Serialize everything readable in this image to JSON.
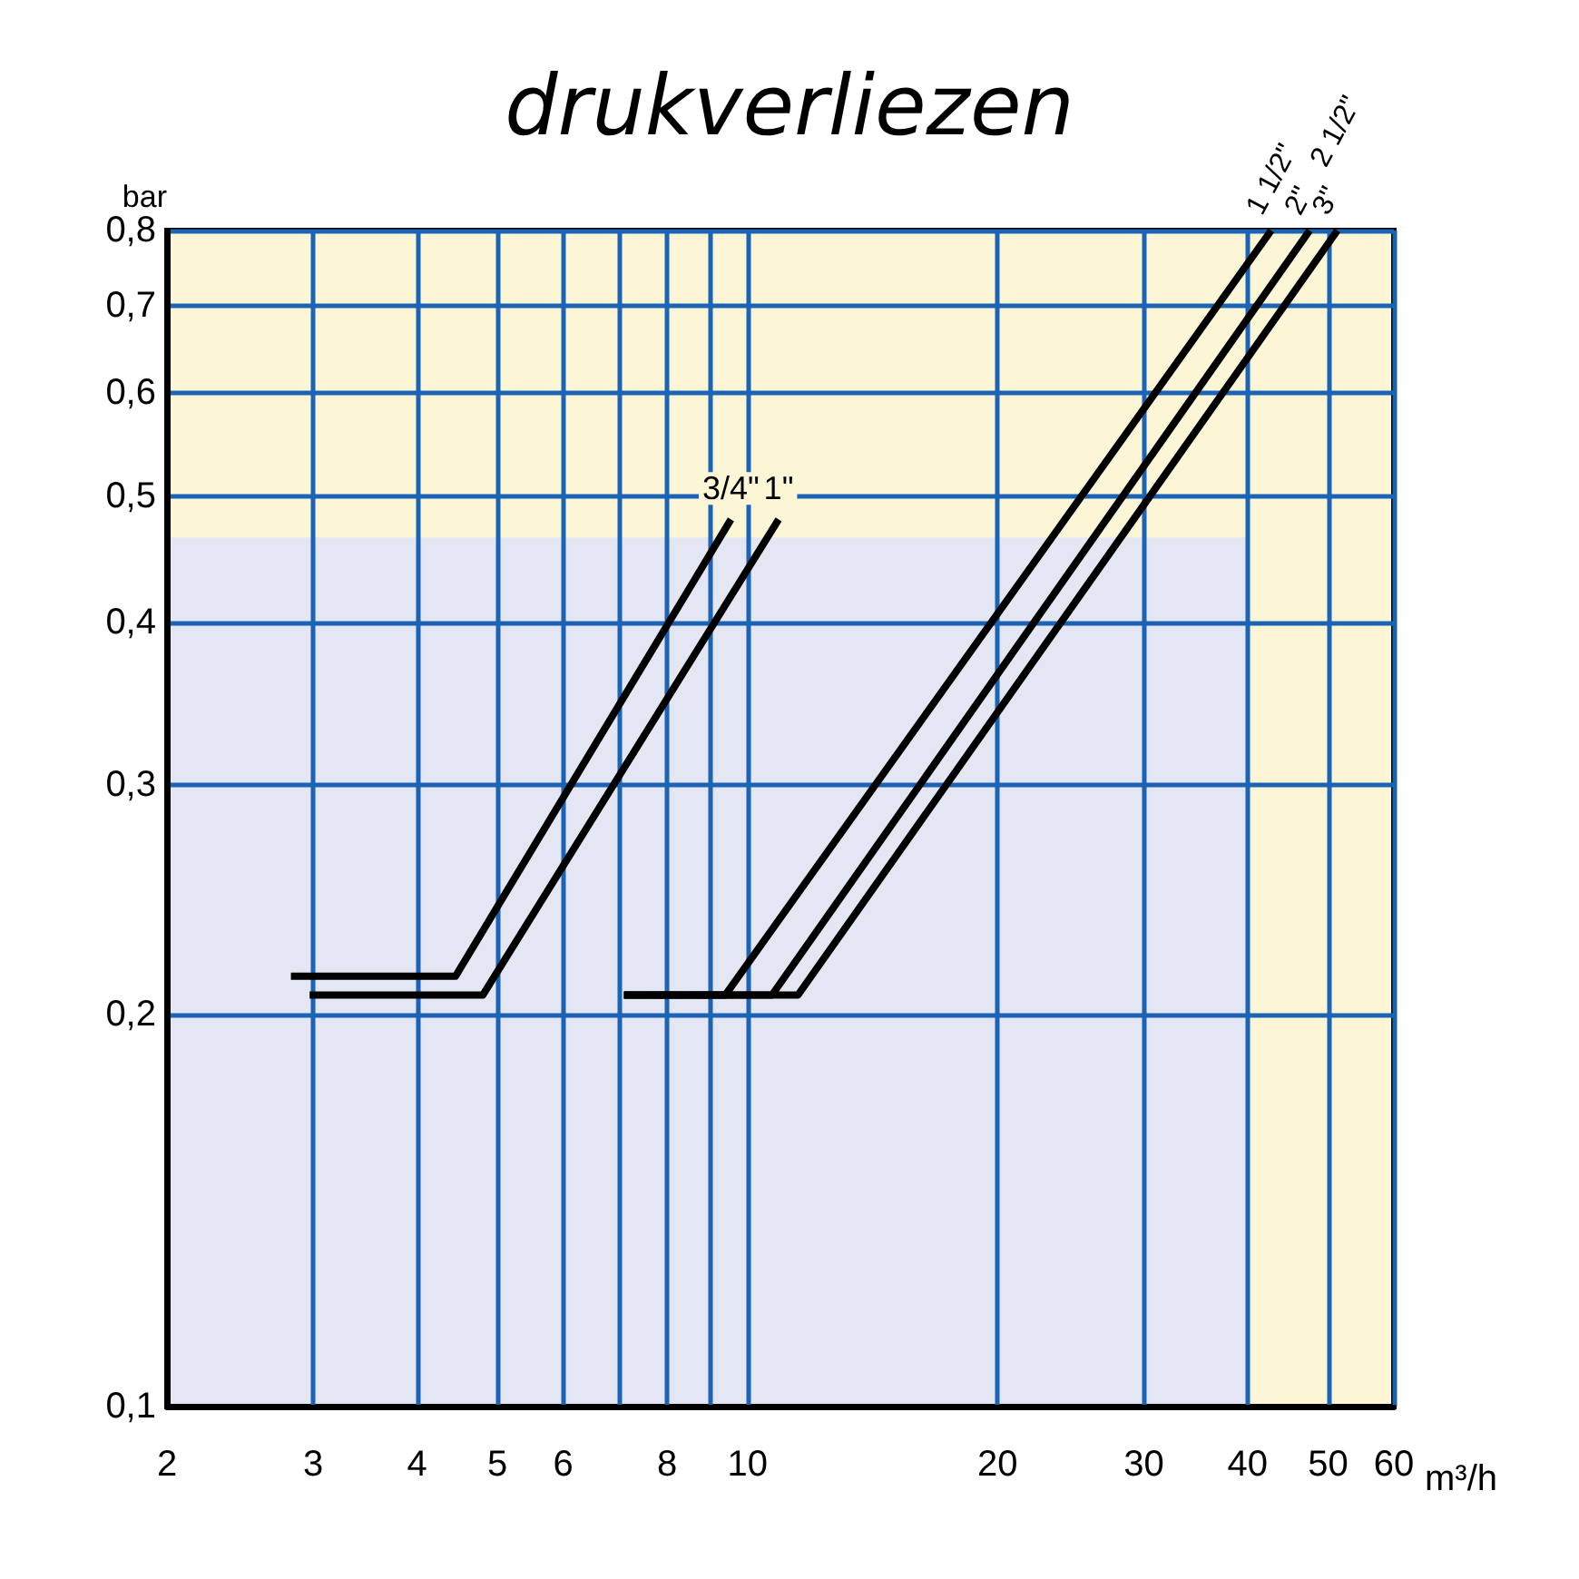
{
  "chart_data": {
    "type": "line",
    "title": "drukverliezen",
    "xlabel": "m³/h",
    "ylabel": "bar",
    "log": "xy",
    "grid": true,
    "legend": false,
    "marker": "none",
    "line_style": "solid",
    "xlim": [
      2,
      60
    ],
    "ylim": [
      0.1,
      0.8
    ],
    "xticks": [
      2,
      3,
      4,
      5,
      6,
      {
        "value": 7,
        "label": null
      },
      8,
      {
        "value": 9,
        "label": null
      },
      10,
      20,
      30,
      40,
      50,
      60
    ],
    "yticks": [
      {
        "value": 0.1,
        "label": "0,1"
      },
      {
        "value": 0.2,
        "label": "0,2"
      },
      {
        "value": 0.3,
        "label": "0,3"
      },
      {
        "value": 0.4,
        "label": "0,4"
      },
      {
        "value": 0.5,
        "label": "0,5"
      },
      {
        "value": 0.6,
        "label": "0,6"
      },
      {
        "value": 0.7,
        "label": "0,7"
      },
      {
        "value": 0.8,
        "label": "0,8"
      }
    ],
    "bands": [
      {
        "axis": "y",
        "from": 0.465,
        "to": 0.8,
        "color": "#fdf6d6"
      },
      {
        "axis": "x",
        "from": 40,
        "to": 60,
        "color": "#fdf6d6"
      }
    ],
    "series": [
      {
        "name": "3/4\"",
        "color": "#000000",
        "x": [
          2.82,
          4.45,
          9.55
        ],
        "values": [
          0.214,
          0.214,
          0.48
        ]
      },
      {
        "name": "1\"",
        "color": "#000000",
        "x": [
          2.97,
          4.8,
          10.9
        ],
        "values": [
          0.207,
          0.207,
          0.48
        ]
      },
      {
        "name": "1 1/2\"",
        "color": "#000000",
        "x": [
          7.1,
          9.4,
          42.7
        ],
        "values": [
          0.207,
          0.207,
          0.8
        ]
      },
      {
        "name": "2\"",
        "color": "#000000",
        "x": [
          7.1,
          10.7,
          47.5
        ],
        "values": [
          0.207,
          0.207,
          0.8
        ]
      },
      {
        "name": "3\"",
        "color": "#000000",
        "x": [
          7.1,
          11.5,
          51.3
        ],
        "values": [
          0.207,
          0.207,
          0.8
        ]
      }
    ],
    "annotations": [
      {
        "text": "2 1/2\"",
        "x": 47.5,
        "y": 0.8
      }
    ]
  }
}
